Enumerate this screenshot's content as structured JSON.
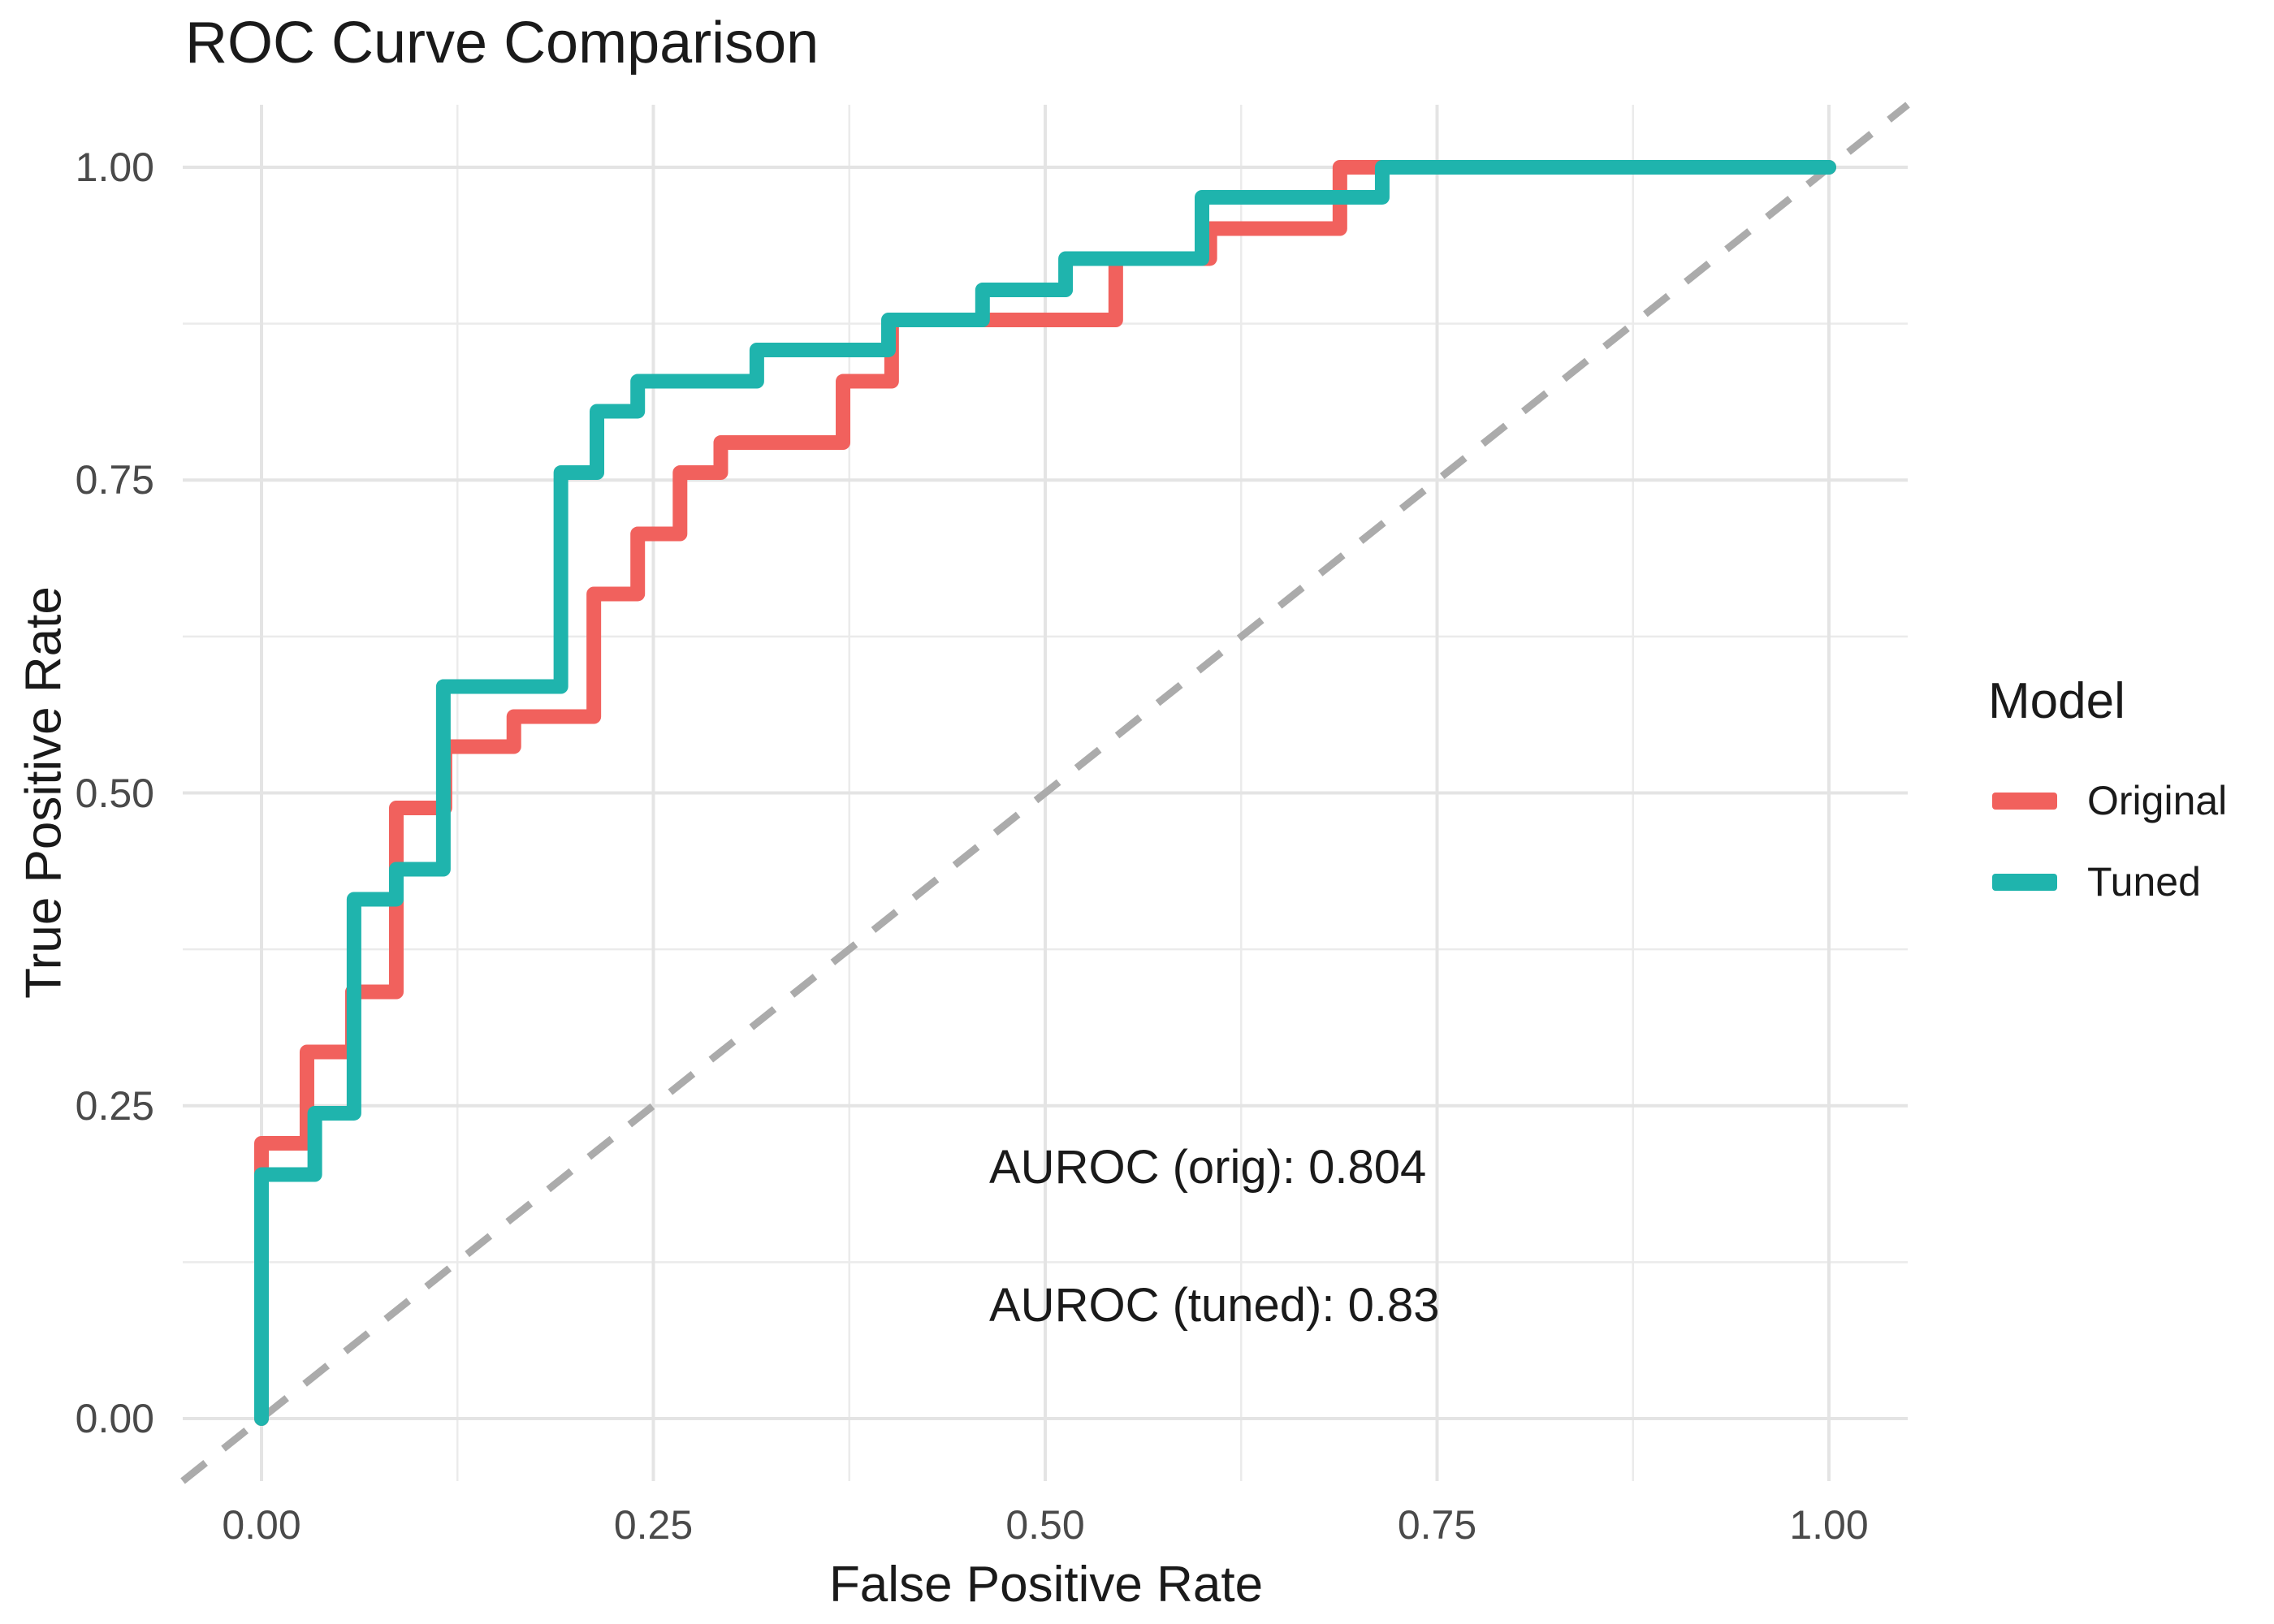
{
  "chart_data": {
    "type": "line",
    "subtype": "roc-step-curve",
    "title": "ROC Curve Comparison",
    "xlabel": "False Positive Rate",
    "ylabel": "True Positive Rate",
    "xlim": [
      0,
      1
    ],
    "ylim": [
      0,
      1
    ],
    "grid": "on",
    "legend_position": "right-center",
    "x_ticks": {
      "values": [
        0,
        0.25,
        0.5,
        0.75,
        1.0
      ],
      "labels": [
        "0.00",
        "0.25",
        "0.50",
        "0.75",
        "1.00"
      ]
    },
    "y_ticks": {
      "values": [
        0,
        0.25,
        0.5,
        0.75,
        1.0
      ],
      "labels": [
        "0.00",
        "0.25",
        "0.50",
        "0.75",
        "1.00"
      ]
    },
    "minor_ticks": [
      0.125,
      0.375,
      0.625,
      0.875
    ],
    "grid_major_color": "#E4E4E4",
    "grid_minor_color": "#EBEBEB",
    "series": [
      {
        "name": "Original",
        "color": "#F1615D",
        "auroc": 0.804,
        "start": [
          0,
          0
        ],
        "steps": [
          [
            0.0,
            0.22
          ],
          [
            0.029,
            0.293
          ],
          [
            0.058,
            0.341
          ],
          [
            0.086,
            0.488
          ],
          [
            0.117,
            0.537
          ],
          [
            0.161,
            0.561
          ],
          [
            0.212,
            0.659
          ],
          [
            0.24,
            0.707
          ],
          [
            0.267,
            0.756
          ],
          [
            0.293,
            0.78
          ],
          [
            0.371,
            0.829
          ],
          [
            0.402,
            0.878
          ],
          [
            0.545,
            0.927
          ],
          [
            0.605,
            0.951
          ],
          [
            0.688,
            1.0
          ]
        ],
        "end_fpr": 1.0
      },
      {
        "name": "Tuned",
        "color": "#1FB4AD",
        "auroc": 0.83,
        "start": [
          0,
          0
        ],
        "steps": [
          [
            0.0,
            0.195
          ],
          [
            0.034,
            0.244
          ],
          [
            0.059,
            0.415
          ],
          [
            0.086,
            0.439
          ],
          [
            0.116,
            0.585
          ],
          [
            0.191,
            0.756
          ],
          [
            0.214,
            0.805
          ],
          [
            0.24,
            0.829
          ],
          [
            0.316,
            0.854
          ],
          [
            0.4,
            0.878
          ],
          [
            0.46,
            0.902
          ],
          [
            0.513,
            0.927
          ],
          [
            0.6,
            0.976
          ],
          [
            0.715,
            1.0
          ]
        ],
        "end_fpr": 1.0
      }
    ],
    "reference_line": {
      "from": [
        0,
        0
      ],
      "to": [
        1,
        1
      ],
      "style": "dashed",
      "color": "#ABABAB"
    }
  },
  "legend": {
    "title": "Model",
    "items": [
      {
        "label": "Original",
        "color": "#F1615D"
      },
      {
        "label": "Tuned",
        "color": "#1FB4AD"
      }
    ]
  },
  "annotations": {
    "auroc_orig": "AUROC (orig): 0.804",
    "auroc_tuned": "AUROC (tuned): 0.83"
  }
}
